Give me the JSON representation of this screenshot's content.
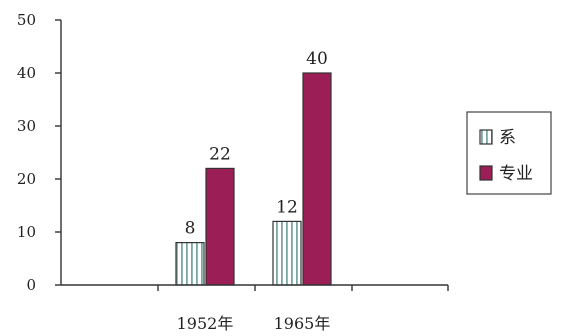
{
  "chart_data": {
    "type": "bar",
    "categories": [
      "1952年",
      "1965年"
    ],
    "series": [
      {
        "name": "系",
        "values": [
          8,
          12
        ],
        "color": "#ffffff",
        "pattern": "vertical-stripes",
        "stripe_color": "#7aa6a6"
      },
      {
        "name": "专业",
        "values": [
          22,
          40
        ],
        "color": "#9b1f56"
      }
    ],
    "ylim": [
      0,
      50
    ],
    "yticks": [
      "0",
      "10",
      "20",
      "30",
      "40",
      "50"
    ],
    "title": "",
    "xlabel": "",
    "ylabel": "",
    "grid": false,
    "legend_position": "right",
    "data_labels": true
  }
}
